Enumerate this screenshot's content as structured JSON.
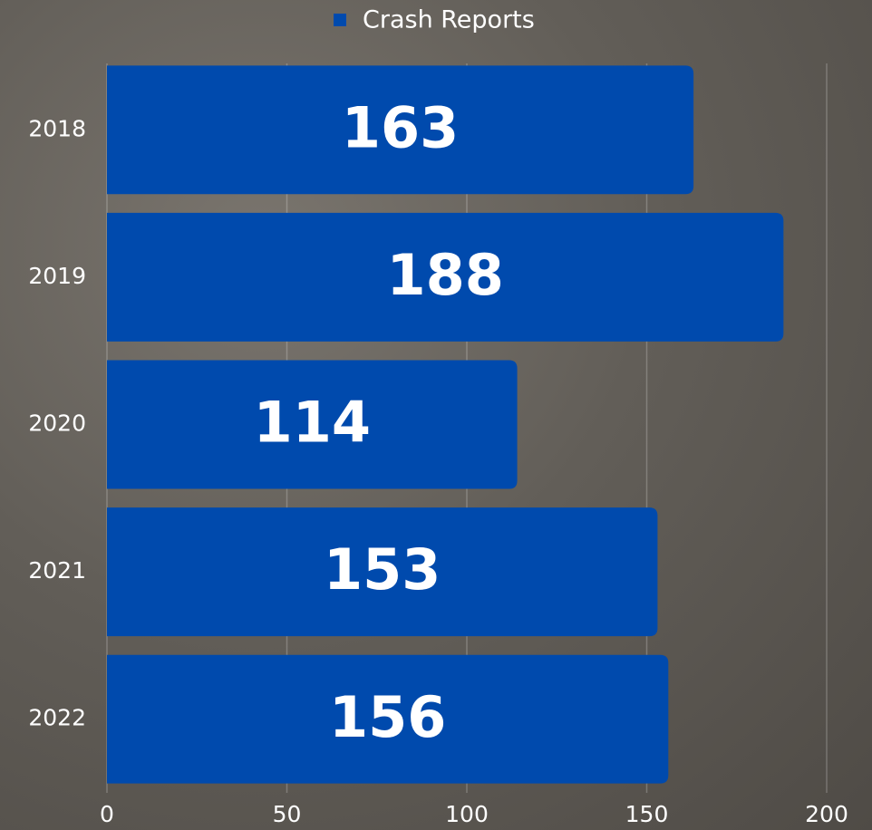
{
  "chart_data": {
    "type": "bar",
    "orientation": "horizontal",
    "categories": [
      "2018",
      "2019",
      "2020",
      "2021",
      "2022"
    ],
    "series": [
      {
        "name": "Crash Reports",
        "color": "#004aad",
        "values": [
          163,
          188,
          114,
          153,
          156
        ]
      }
    ],
    "xlim": [
      0,
      200
    ],
    "xticks": [
      0,
      50,
      100,
      150,
      200
    ],
    "grid": true,
    "legend": "top"
  }
}
